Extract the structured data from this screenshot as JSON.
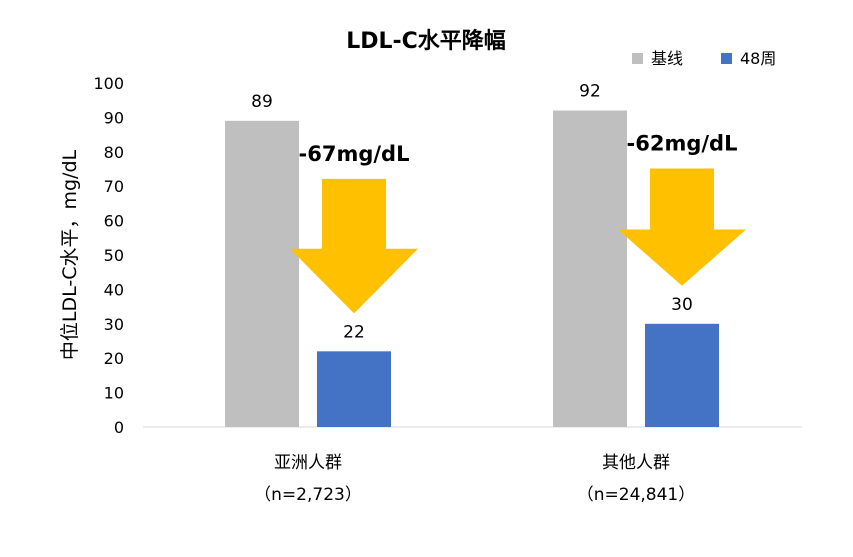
{
  "chart_data": {
    "type": "bar",
    "title": "LDL-C水平降幅",
    "ylabel": "中位LDL-C水平，mg/dL",
    "xlabel": "",
    "ylim": [
      0,
      100
    ],
    "yticks": [
      "0",
      "10",
      "20",
      "30",
      "40",
      "50",
      "60",
      "70",
      "80",
      "90",
      "100"
    ],
    "grid": false,
    "legend_position": "top-right",
    "categories": [
      {
        "name": "亚洲人群",
        "subtitle": "（n=2,723）"
      },
      {
        "name": "其他人群",
        "subtitle": "（n=24,841）"
      }
    ],
    "series": [
      {
        "name": "基线",
        "color": "#bfbfbf",
        "values": [
          89,
          92
        ]
      },
      {
        "name": "48周",
        "color": "#4472c4",
        "values": [
          22,
          30
        ]
      }
    ],
    "annotations": [
      {
        "text": "-67mg/dL",
        "category": 0
      },
      {
        "text": "-62mg/dL",
        "category": 1
      }
    ],
    "arrow_color": "#ffc000"
  }
}
